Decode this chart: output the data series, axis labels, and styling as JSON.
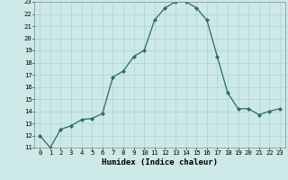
{
  "x": [
    0,
    1,
    2,
    3,
    4,
    5,
    6,
    7,
    8,
    9,
    10,
    11,
    12,
    13,
    14,
    15,
    16,
    17,
    18,
    19,
    20,
    21,
    22,
    23
  ],
  "y": [
    12.0,
    11.0,
    12.5,
    12.8,
    13.3,
    13.4,
    13.8,
    16.8,
    17.3,
    18.5,
    19.0,
    21.5,
    22.5,
    23.0,
    23.0,
    22.5,
    21.5,
    18.5,
    15.5,
    14.2,
    14.2,
    13.7,
    14.0,
    14.2
  ],
  "line_color": "#2e6b5e",
  "marker": "D",
  "marker_size": 2.2,
  "bg_color": "#cce9e7",
  "grid_color": "#aad4d1",
  "xlabel": "Humidex (Indice chaleur)",
  "ylim": [
    11,
    23
  ],
  "xlim": [
    -0.5,
    23.5
  ],
  "yticks": [
    11,
    12,
    13,
    14,
    15,
    16,
    17,
    18,
    19,
    20,
    21,
    22,
    23
  ],
  "xticks": [
    0,
    1,
    2,
    3,
    4,
    5,
    6,
    7,
    8,
    9,
    10,
    11,
    12,
    13,
    14,
    15,
    16,
    17,
    18,
    19,
    20,
    21,
    22,
    23
  ],
  "label_fontsize": 6.5,
  "tick_fontsize": 5.2
}
